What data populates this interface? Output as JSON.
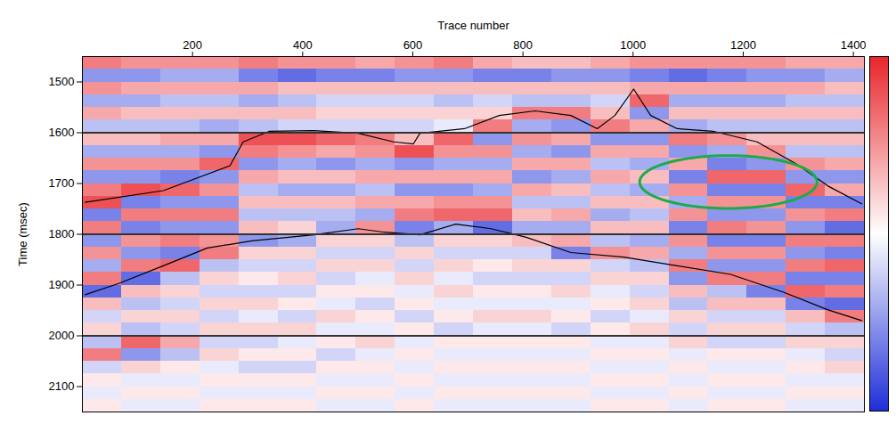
{
  "chart_data": {
    "type": "heatmap",
    "xlabel": "Trace number",
    "ylabel": "Time (msec)",
    "xlim": [
      0,
      1420
    ],
    "xticks": [
      200,
      400,
      600,
      800,
      1000,
      1200,
      1400
    ],
    "ylim": [
      1450,
      2150
    ],
    "yticks": [
      1500,
      1600,
      1700,
      1800,
      1900,
      2000,
      2100
    ],
    "x_edges": [
      0,
      71,
      142,
      213,
      284,
      355,
      426,
      497,
      568,
      639,
      710,
      781,
      852,
      923,
      994,
      1065,
      1136,
      1207,
      1278,
      1349,
      1420
    ],
    "y_edges": [
      1450,
      1475,
      1500,
      1525,
      1550,
      1575,
      1600,
      1625,
      1650,
      1675,
      1700,
      1725,
      1750,
      1775,
      1800,
      1825,
      1850,
      1875,
      1900,
      1925,
      1950,
      1975,
      2000,
      2025,
      2050,
      2075,
      2100,
      2125,
      2150
    ],
    "values": [
      [
        0.6,
        -0.5,
        0.5,
        -0.4,
        0.4,
        -0.3,
        0.3,
        -0.4,
        0.5,
        -0.5,
        0.6,
        0.8,
        -0.6,
        0.6,
        -0.5,
        0.5,
        -0.4,
        0.6,
        -0.7,
        0.3,
        -0.2,
        0.2,
        -0.3,
        0.6,
        -0.2,
        0.1,
        -0.1,
        0.1
      ],
      [
        0.5,
        -0.5,
        0.4,
        -0.4,
        0.3,
        -0.3,
        0.3,
        -0.4,
        0.5,
        -0.5,
        0.8,
        -0.6,
        0.6,
        -0.6,
        0.5,
        -0.5,
        0.6,
        -0.7,
        0.3,
        -0.3,
        0.2,
        -0.3,
        0.7,
        -0.5,
        0.2,
        -0.1,
        0.1,
        -0.1
      ],
      [
        0.5,
        -0.4,
        0.4,
        -0.3,
        0.3,
        -0.3,
        0.4,
        -0.4,
        0.5,
        -0.6,
        0.7,
        -0.5,
        0.6,
        -0.5,
        0.6,
        -0.6,
        0.7,
        -0.3,
        0.2,
        -0.2,
        0.2,
        -0.2,
        0.4,
        -0.3,
        0.1,
        -0.1,
        0.1,
        -0.1
      ],
      [
        0.5,
        -0.4,
        0.4,
        -0.3,
        0.3,
        -0.4,
        0.4,
        -0.5,
        0.7,
        -0.5,
        0.5,
        -0.5,
        0.6,
        -0.5,
        0.5,
        0.6,
        -0.3,
        0.2,
        -0.2,
        0.2,
        -0.2,
        0.2,
        -0.2,
        0.2,
        -0.1,
        0.1,
        -0.1,
        0.1
      ],
      [
        0.6,
        -0.6,
        0.4,
        -0.4,
        0.3,
        -0.3,
        0.8,
        0.6,
        -0.5,
        0.4,
        -0.3,
        0.3,
        -0.3,
        0.3,
        -0.5,
        0.2,
        -0.2,
        0.1,
        -0.2,
        0.2,
        -0.1,
        0.2,
        -0.2,
        0.1,
        -0.2,
        0.1,
        -0.1,
        0.1
      ],
      [
        0.5,
        -0.7,
        0.3,
        -0.3,
        0.3,
        -0.2,
        0.8,
        0.5,
        -0.4,
        0.3,
        -0.4,
        0.3,
        -0.3,
        0.2,
        -0.4,
        0.2,
        -0.2,
        0.2,
        -0.2,
        0.1,
        -0.2,
        0.2,
        -0.1,
        0.1,
        -0.2,
        0.1,
        -0.1,
        0.1
      ],
      [
        0.5,
        -0.6,
        0.3,
        -0.2,
        0.2,
        -0.2,
        0.7,
        0.4,
        -0.5,
        0.3,
        -0.4,
        0.3,
        -0.3,
        -0.4,
        0.2,
        -0.2,
        0.2,
        -0.2,
        0.1,
        -0.1,
        0.2,
        -0.1,
        0.1,
        -0.2,
        0.1,
        -0.1,
        0.1,
        -0.1
      ],
      [
        0.4,
        -0.6,
        0.3,
        -0.2,
        0.2,
        -0.2,
        0.6,
        0.5,
        -0.4,
        0.4,
        -0.3,
        0.4,
        -0.4,
        0.5,
        0.2,
        -0.2,
        0.2,
        -0.1,
        0.1,
        -0.2,
        0.1,
        -0.1,
        0.2,
        -0.1,
        0.1,
        -0.1,
        0.1,
        -0.1
      ],
      [
        0.5,
        -0.5,
        0.3,
        -0.2,
        0.2,
        -0.2,
        0.3,
        0.8,
        -0.5,
        0.4,
        -0.5,
        0.4,
        0.6,
        -0.6,
        -0.3,
        0.2,
        -0.2,
        0.2,
        -0.1,
        0.1,
        -0.2,
        0.1,
        -0.1,
        0.1,
        -0.1,
        0.1,
        -0.1,
        0.1
      ],
      [
        0.6,
        -0.5,
        0.3,
        -0.3,
        0.2,
        -0.1,
        0.7,
        0.5,
        -0.4,
        0.4,
        -0.5,
        0.5,
        0.7,
        -0.4,
        0.2,
        -0.2,
        0.2,
        -0.1,
        0.2,
        -0.1,
        0.1,
        -0.2,
        0.1,
        -0.1,
        0.1,
        -0.1,
        0.1,
        -0.1
      ],
      [
        0.4,
        -0.6,
        0.3,
        -0.2,
        0.2,
        0.6,
        -0.5,
        0.5,
        -0.4,
        0.4,
        -0.4,
        0.5,
        0.7,
        -0.7,
        0.2,
        -0.2,
        0.1,
        -0.2,
        0.1,
        -0.1,
        0.2,
        -0.1,
        0.1,
        -0.1,
        0.1,
        -0.1,
        0.1,
        -0.1
      ],
      [
        0.3,
        -0.6,
        0.3,
        -0.3,
        0.6,
        -0.4,
        0.5,
        -0.4,
        0.4,
        -0.5,
        0.4,
        -0.3,
        0.3,
        -0.4,
        0.3,
        -0.2,
        0.2,
        -0.2,
        0.1,
        -0.1,
        0.2,
        -0.1,
        0.1,
        -0.1,
        0.1,
        -0.1,
        0.1,
        -0.1
      ],
      [
        0.3,
        -0.5,
        0.3,
        -0.3,
        0.6,
        -0.5,
        0.4,
        -0.5,
        0.4,
        -0.4,
        0.3,
        -0.3,
        0.4,
        -0.4,
        0.4,
        -0.6,
        0.2,
        -0.2,
        0.2,
        -0.1,
        0.1,
        -0.2,
        0.1,
        -0.1,
        0.1,
        -0.1,
        0.1,
        -0.1
      ],
      [
        0.4,
        -0.5,
        0.3,
        -0.2,
        0.3,
        0.6,
        -0.5,
        0.4,
        -0.3,
        0.4,
        -0.3,
        0.3,
        -0.4,
        0.3,
        -0.3,
        0.5,
        -0.2,
        0.2,
        -0.1,
        0.1,
        -0.2,
        0.1,
        -0.1,
        0.1,
        -0.1,
        0.1,
        -0.1,
        0.1
      ],
      [
        0.5,
        -0.6,
        0.4,
        0.7,
        -0.5,
        0.4,
        -0.5,
        0.4,
        -0.4,
        0.3,
        -0.4,
        0.3,
        -0.3,
        0.3,
        -0.4,
        0.4,
        -0.3,
        0.2,
        -0.2,
        0.2,
        -0.1,
        0.2,
        -0.1,
        0.1,
        -0.1,
        0.1,
        -0.1,
        0.1
      ],
      [
        0.5,
        -0.7,
        0.4,
        -0.4,
        0.3,
        -0.4,
        0.6,
        -0.5,
        0.4,
        -0.6,
        0.5,
        -0.4,
        0.5,
        -0.6,
        0.5,
        -0.4,
        0.6,
        -0.5,
        0.3,
        -0.3,
        0.2,
        -0.2,
        0.2,
        -0.1,
        0.1,
        -0.1,
        0.1,
        -0.1
      ],
      [
        0.5,
        -0.6,
        0.4,
        -0.4,
        0.3,
        -0.3,
        0.5,
        -0.4,
        -0.6,
        0.7,
        -0.6,
        0.5,
        -0.5,
        0.6,
        -0.6,
        0.5,
        -0.5,
        0.6,
        -0.3,
        0.3,
        -0.2,
        0.2,
        -0.2,
        0.1,
        -0.1,
        0.1,
        -0.1,
        0.1
      ],
      [
        0.5,
        -0.5,
        0.4,
        -0.4,
        0.3,
        -0.3,
        0.3,
        0.5,
        -0.5,
        0.7,
        -0.6,
        0.5,
        -0.5,
        0.5,
        -0.6,
        0.5,
        -0.5,
        0.6,
        -0.6,
        0.3,
        -0.2,
        0.2,
        -0.2,
        0.1,
        -0.1,
        0.1,
        -0.1,
        0.1
      ],
      [
        0.4,
        -0.5,
        0.4,
        -0.3,
        0.3,
        -0.3,
        0.3,
        -0.3,
        0.5,
        -0.5,
        0.7,
        -0.6,
        0.5,
        -0.5,
        0.6,
        -0.5,
        0.6,
        -0.6,
        0.7,
        -0.6,
        0.3,
        -0.2,
        0.2,
        -0.1,
        0.1,
        -0.1,
        0.1,
        -0.1
      ],
      [
        0.4,
        -0.4,
        0.3,
        -0.3,
        0.3,
        -0.3,
        0.3,
        -0.3,
        0.4,
        -0.5,
        0.4,
        -0.6,
        0.6,
        -0.7,
        0.6,
        -0.6,
        0.7,
        -0.6,
        0.6,
        -0.7,
        0.6,
        -0.3,
        0.2,
        -0.2,
        0.2,
        -0.1,
        0.1,
        -0.1
      ]
    ],
    "colorbar": {
      "range": [
        -1,
        1
      ],
      "center": 0,
      "colors": [
        "#1f2fd8",
        "#ffffff",
        "#e8262b"
      ]
    },
    "lines": [
      {
        "color": "#000000",
        "x": [
          5,
          147,
          268,
          292,
          340,
          420,
          501,
          565,
          601,
          613,
          694,
          757,
          822,
          887,
          935,
          967,
          1001,
          1032,
          1080,
          1145,
          1225,
          1297,
          1354,
          1415
        ],
        "y": [
          1737,
          1714,
          1665,
          1618,
          1597,
          1596,
          1601,
          1618,
          1622,
          1601,
          1592,
          1566,
          1557,
          1566,
          1592,
          1566,
          1514,
          1566,
          1592,
          1597,
          1618,
          1662,
          1705,
          1740
        ]
      },
      {
        "color": "#000000",
        "x": [
          5,
          66,
          147,
          227,
          308,
          420,
          501,
          549,
          613,
          678,
          742,
          806,
          887,
          983,
          1080,
          1177,
          1273,
          1354,
          1415
        ],
        "y": [
          1919,
          1897,
          1862,
          1827,
          1813,
          1801,
          1789,
          1796,
          1801,
          1780,
          1789,
          1806,
          1836,
          1845,
          1862,
          1879,
          1914,
          1949,
          1970
        ]
      }
    ],
    "reference_lines": {
      "values": [
        1600,
        1800,
        2000
      ],
      "color": "#333333"
    },
    "annotations": [
      {
        "shape": "ellipse",
        "x": 1173,
        "y": 1697,
        "rx": 161,
        "ry": 52,
        "color": "#1faa4a"
      }
    ]
  }
}
